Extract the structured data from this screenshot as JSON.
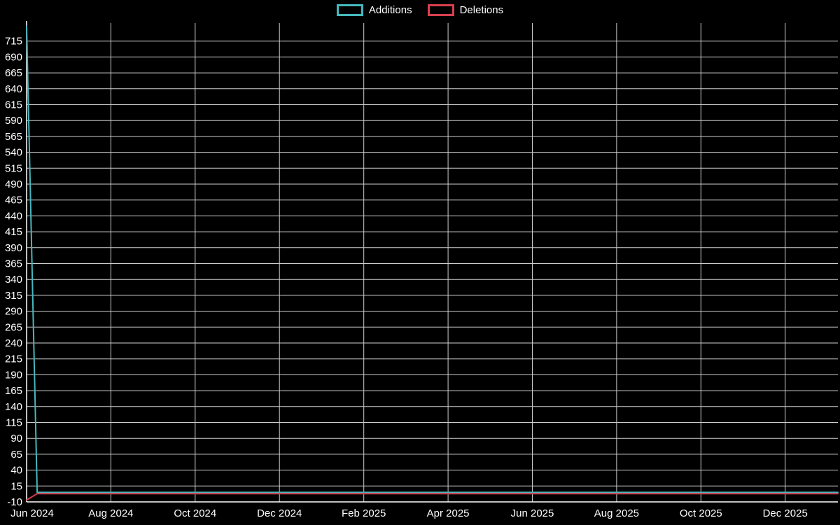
{
  "chart_data": {
    "type": "line",
    "title": "",
    "background": "#000000",
    "grid_color": "#cfcfcf",
    "axis_color": "#ffffff",
    "text_color": "#ffffff",
    "legend_position": "top-center",
    "legend": [
      {
        "label": "Additions",
        "color": "#46b8bd"
      },
      {
        "label": "Deletions",
        "color": "#d8404e"
      }
    ],
    "ylabel": "",
    "xlabel": "",
    "y_range": [
      -10,
      740
    ],
    "y_ticks": [
      715,
      690,
      665,
      640,
      615,
      590,
      565,
      540,
      515,
      490,
      465,
      440,
      415,
      390,
      365,
      340,
      315,
      290,
      265,
      240,
      215,
      190,
      165,
      140,
      115,
      90,
      65,
      40,
      15,
      -10
    ],
    "x_range_months": [
      0,
      19.25
    ],
    "x_tick_months": [
      0,
      2,
      4,
      6,
      8,
      10,
      12,
      14,
      16,
      18
    ],
    "x_tick_labels": [
      "Jun 2024",
      "Aug 2024",
      "Oct 2024",
      "Dec 2024",
      "Feb 2025",
      "Apr 2025",
      "Jun 2025",
      "Aug 2025",
      "Oct 2025",
      "Dec 2025"
    ],
    "series": [
      {
        "name": "Additions",
        "color": "#46b8bd",
        "points_month_value": [
          [
            0,
            738
          ],
          [
            0.25,
            5
          ],
          [
            19.25,
            5
          ]
        ]
      },
      {
        "name": "Deletions",
        "color": "#d8404e",
        "points_month_value": [
          [
            0,
            -7
          ],
          [
            0.25,
            3
          ],
          [
            19.25,
            3
          ]
        ]
      }
    ]
  }
}
